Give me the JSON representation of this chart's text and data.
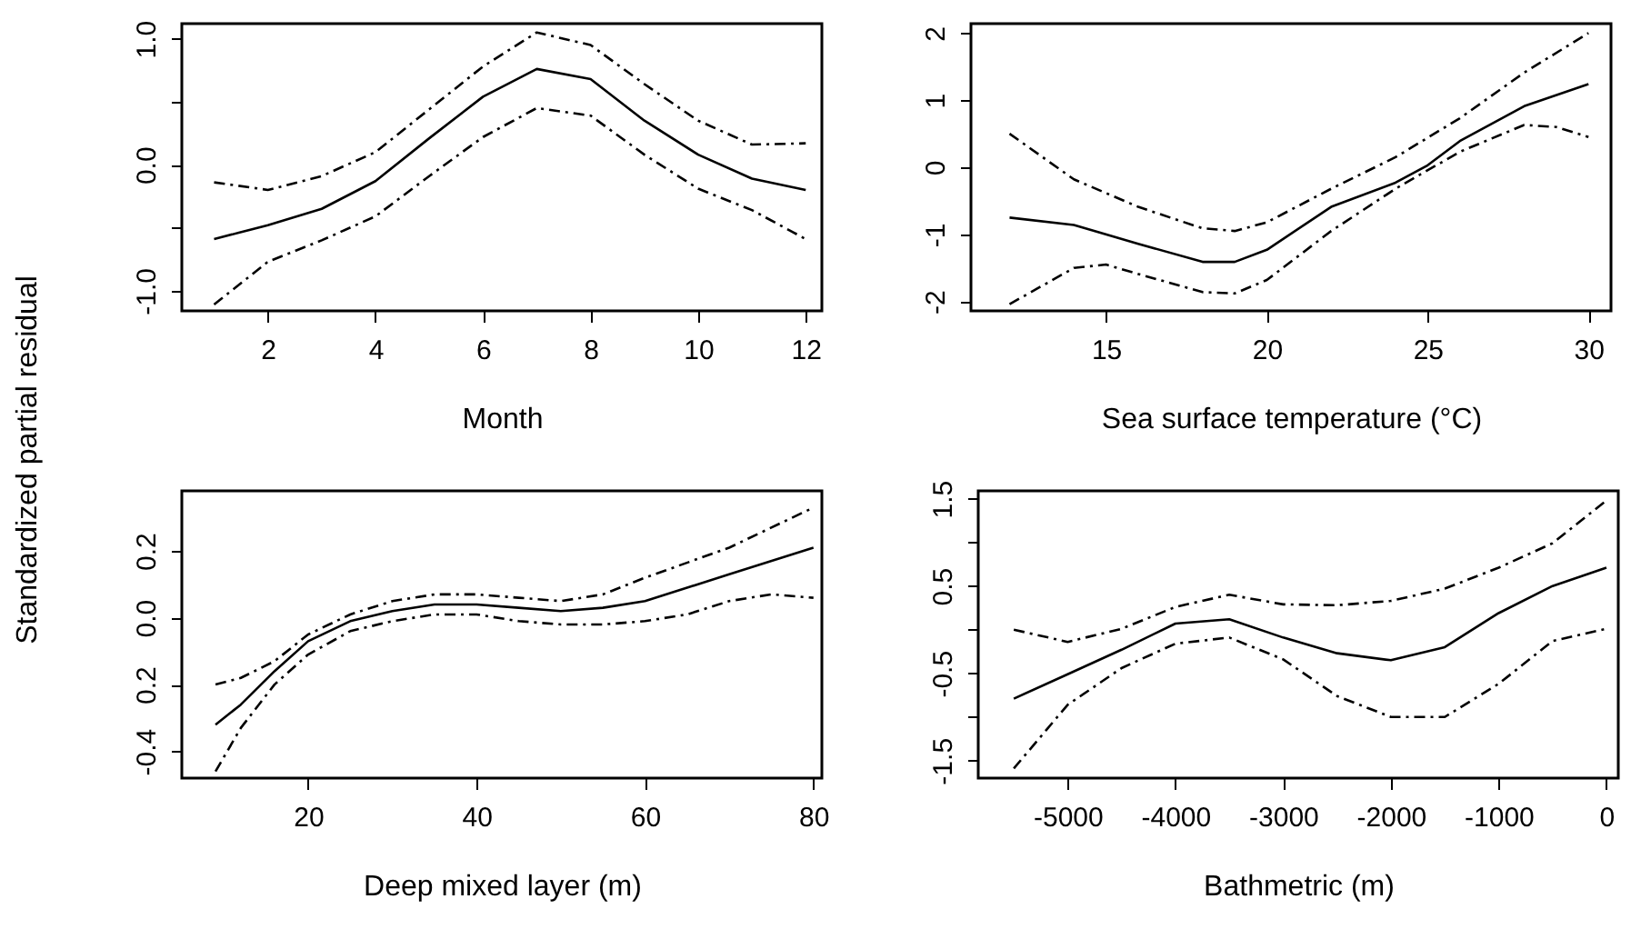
{
  "chart_data": [
    {
      "type": "line",
      "xlabel": "Month",
      "ylabel": "Standardized partial residual",
      "xlim": [
        0.4,
        12.3
      ],
      "ylim": [
        -1.16,
        1.12
      ],
      "xticks": [
        2,
        4,
        6,
        8,
        10,
        12
      ],
      "yticks": [
        {
          "value": -1,
          "label": "-1.0"
        },
        {
          "value": -0.5,
          "label": null
        },
        {
          "value": 0,
          "label": "0.0"
        },
        {
          "value": 0.5,
          "label": null
        },
        {
          "value": 1,
          "label": "1.0"
        }
      ],
      "x": [
        1,
        2,
        3,
        4,
        5,
        6,
        7,
        8,
        9,
        10,
        11,
        12
      ],
      "series": [
        {
          "color": "#000000",
          "line_style": "solid",
          "values": [
            -0.59,
            -0.48,
            -0.35,
            -0.13,
            0.21,
            0.54,
            0.76,
            0.68,
            0.35,
            0.08,
            -0.11,
            -0.2
          ]
        },
        {
          "color": "#000000",
          "line_style": "dashed",
          "values": [
            -0.14,
            -0.2,
            -0.09,
            0.1,
            0.44,
            0.78,
            1.05,
            0.95,
            0.64,
            0.35,
            0.16,
            0.17
          ]
        },
        {
          "color": "#000000",
          "line_style": "dashed",
          "values": [
            -1.11,
            -0.77,
            -0.6,
            -0.41,
            -0.09,
            0.22,
            0.45,
            0.39,
            0.08,
            -0.19,
            -0.36,
            -0.59
          ]
        }
      ]
    },
    {
      "type": "line",
      "xlabel": "Sea surface temperature (°C)",
      "xlim": [
        10.8,
        30.7
      ],
      "ylim": [
        -2.14,
        2.14
      ],
      "xticks": [
        15,
        20,
        25,
        30
      ],
      "yticks": [
        -2,
        -1,
        0,
        1,
        2
      ],
      "series": [
        {
          "color": "#000000",
          "line_style": "solid",
          "x": [
            12,
            14,
            16,
            18,
            19,
            20,
            22,
            24,
            25,
            26,
            28,
            30
          ],
          "values": [
            -0.75,
            -0.86,
            -1.14,
            -1.41,
            -1.41,
            -1.23,
            -0.59,
            -0.23,
            0.03,
            0.39,
            0.91,
            1.24
          ]
        },
        {
          "color": "#000000",
          "line_style": "dashed",
          "x": [
            12,
            14,
            16,
            18,
            19,
            20,
            22,
            24,
            26,
            28,
            30
          ],
          "values": [
            0.5,
            -0.18,
            -0.59,
            -0.91,
            -0.95,
            -0.82,
            -0.32,
            0.15,
            0.73,
            1.41,
            2.0
          ]
        },
        {
          "color": "#000000",
          "line_style": "dashed",
          "x": [
            12,
            14,
            15,
            16,
            18,
            19,
            20,
            22,
            24,
            26,
            28,
            29,
            30
          ],
          "values": [
            -2.04,
            -1.5,
            -1.45,
            -1.59,
            -1.86,
            -1.88,
            -1.68,
            -0.95,
            -0.32,
            0.23,
            0.63,
            0.6,
            0.45
          ]
        }
      ]
    },
    {
      "type": "line",
      "xlabel": "Deep mixed layer (m)",
      "xlim": [
        5,
        81
      ],
      "ylim": [
        -0.48,
        0.38
      ],
      "xticks": [
        20,
        40,
        60,
        80
      ],
      "yticks": [
        {
          "value": -0.4,
          "label": "-0.4"
        },
        {
          "value": -0.2,
          "label": "0.2"
        },
        {
          "value": 0,
          "label": "0.0"
        },
        {
          "value": 0.2,
          "label": "0.2"
        }
      ],
      "series": [
        {
          "color": "#000000",
          "line_style": "solid",
          "x": [
            9,
            12,
            16,
            20,
            25,
            30,
            35,
            40,
            45,
            50,
            55,
            60,
            70,
            80
          ],
          "values": [
            -0.32,
            -0.26,
            -0.16,
            -0.07,
            -0.01,
            0.02,
            0.04,
            0.04,
            0.03,
            0.02,
            0.03,
            0.05,
            0.13,
            0.21
          ]
        },
        {
          "color": "#000000",
          "line_style": "dashed",
          "x": [
            9,
            12,
            16,
            20,
            25,
            30,
            35,
            40,
            45,
            50,
            55,
            60,
            70,
            80
          ],
          "values": [
            -0.2,
            -0.18,
            -0.13,
            -0.05,
            0.01,
            0.05,
            0.07,
            0.07,
            0.06,
            0.05,
            0.07,
            0.12,
            0.21,
            0.33
          ]
        },
        {
          "color": "#000000",
          "line_style": "dashed",
          "x": [
            9,
            12,
            16,
            20,
            25,
            30,
            35,
            40,
            45,
            50,
            55,
            60,
            65,
            70,
            75,
            80
          ],
          "values": [
            -0.46,
            -0.33,
            -0.2,
            -0.11,
            -0.04,
            -0.01,
            0.01,
            0.01,
            -0.01,
            -0.02,
            -0.02,
            -0.01,
            0.01,
            0.05,
            0.07,
            0.06
          ]
        }
      ]
    },
    {
      "type": "line",
      "xlabel": "Bathmetric (m)",
      "xlim": [
        -5830,
        110
      ],
      "ylim": [
        -1.7,
        1.59
      ],
      "xticks": [
        -5000,
        -4000,
        -3000,
        -2000,
        -1000,
        0
      ],
      "yticks": [
        {
          "value": -1.5,
          "label": "-1.5"
        },
        {
          "value": -1,
          "label": null
        },
        {
          "value": -0.5,
          "label": "-0.5"
        },
        {
          "value": 0,
          "label": null
        },
        {
          "value": 0.5,
          "label": "0.5"
        },
        {
          "value": 1,
          "label": null
        },
        {
          "value": 1.5,
          "label": "1.5"
        }
      ],
      "x": [
        -5500,
        -5000,
        -4500,
        -4000,
        -3500,
        -3000,
        -2500,
        -2000,
        -1500,
        -1000,
        -500,
        0
      ],
      "series": [
        {
          "color": "#000000",
          "line_style": "solid",
          "values": [
            -0.79,
            -0.51,
            -0.23,
            0.07,
            0.12,
            -0.09,
            -0.27,
            -0.35,
            -0.2,
            0.19,
            0.5,
            0.71
          ]
        },
        {
          "color": "#000000",
          "line_style": "dashed",
          "values": [
            0,
            -0.14,
            0.01,
            0.26,
            0.4,
            0.29,
            0.28,
            0.33,
            0.47,
            0.71,
            0.99,
            1.48
          ]
        },
        {
          "color": "#000000",
          "line_style": "dashed",
          "values": [
            -1.59,
            -0.86,
            -0.44,
            -0.16,
            -0.09,
            -0.34,
            -0.76,
            -1.0,
            -1.0,
            -0.62,
            -0.13,
            0.01
          ]
        }
      ]
    }
  ]
}
